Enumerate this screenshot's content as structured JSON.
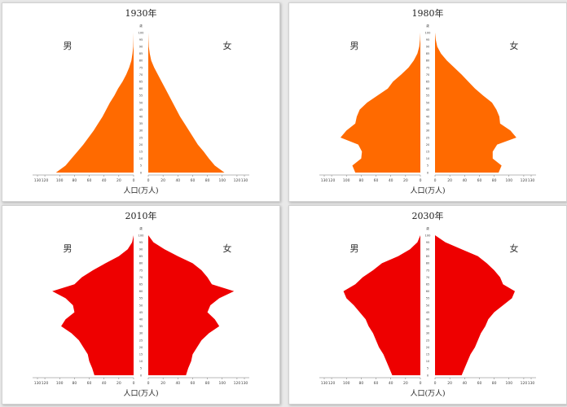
{
  "chart_data": [
    {
      "type": "bar",
      "title": "1930年",
      "left_label": "男",
      "right_label": "女",
      "xlabel": "人口(万人)",
      "xticks": [
        "130",
        "120",
        "100",
        "80",
        "60",
        "40",
        "20",
        "0",
        "0",
        "20",
        "40",
        "60",
        "80",
        "100",
        "120",
        "130"
      ],
      "age_top_label": "歳",
      "age_ticks": [
        "0",
        "5",
        "10",
        "15",
        "20",
        "25",
        "30",
        "35",
        "40",
        "45",
        "50",
        "55",
        "60",
        "65",
        "70",
        "75",
        "80",
        "85",
        "90",
        "95",
        "100"
      ],
      "age_range": [
        0,
        100
      ],
      "xlim": [
        0,
        130
      ],
      "color": "#ff6a00",
      "ages": [
        0,
        5,
        10,
        15,
        20,
        25,
        30,
        35,
        40,
        45,
        50,
        55,
        60,
        65,
        70,
        75,
        80,
        85,
        90,
        95,
        100
      ],
      "male": [
        105,
        92,
        84,
        76,
        68,
        61,
        54,
        48,
        42,
        37,
        32,
        26,
        21,
        15,
        10,
        6,
        3,
        1.5,
        0.5,
        0.2,
        0
      ],
      "female": [
        103,
        90,
        82,
        75,
        67,
        61,
        55,
        49,
        43,
        38,
        33,
        28,
        23,
        18,
        13,
        8,
        4,
        2,
        0.7,
        0.3,
        0
      ]
    },
    {
      "type": "bar",
      "title": "1980年",
      "left_label": "男",
      "right_label": "女",
      "xlabel": "人口(万人)",
      "xticks": [
        "130",
        "120",
        "100",
        "80",
        "60",
        "40",
        "20",
        "0",
        "0",
        "20",
        "40",
        "60",
        "80",
        "100",
        "120",
        "130"
      ],
      "age_top_label": "歳",
      "age_ticks": [
        "0",
        "5",
        "10",
        "15",
        "20",
        "25",
        "30",
        "35",
        "40",
        "45",
        "50",
        "55",
        "60",
        "65",
        "70",
        "75",
        "80",
        "85",
        "90",
        "95",
        "100"
      ],
      "age_range": [
        0,
        100
      ],
      "xlim": [
        0,
        130
      ],
      "color": "#ff6a00",
      "ages": [
        0,
        5,
        10,
        15,
        20,
        25,
        30,
        35,
        40,
        45,
        50,
        55,
        60,
        65,
        70,
        75,
        80,
        85,
        90,
        95,
        100
      ],
      "male": [
        88,
        92,
        80,
        79,
        84,
        108,
        100,
        88,
        86,
        82,
        72,
        58,
        44,
        37,
        26,
        16,
        9,
        4,
        1.5,
        0.5,
        0
      ],
      "female": [
        86,
        90,
        78,
        78,
        84,
        110,
        102,
        88,
        87,
        83,
        77,
        65,
        54,
        45,
        36,
        26,
        16,
        8,
        3,
        1,
        0
      ]
    },
    {
      "type": "bar",
      "title": "2010年",
      "left_label": "男",
      "right_label": "女",
      "xlabel": "人口(万人)",
      "xticks": [
        "130",
        "120",
        "100",
        "80",
        "60",
        "40",
        "20",
        "0",
        "0",
        "20",
        "40",
        "60",
        "80",
        "100",
        "120",
        "130"
      ],
      "age_top_label": "歳",
      "age_ticks": [
        "0",
        "5",
        "10",
        "15",
        "20",
        "25",
        "30",
        "35",
        "40",
        "45",
        "50",
        "55",
        "60",
        "65",
        "70",
        "75",
        "80",
        "85",
        "90",
        "95",
        "100"
      ],
      "age_range": [
        0,
        100
      ],
      "xlim": [
        0,
        130
      ],
      "color": "#ee0000",
      "ages": [
        0,
        5,
        10,
        15,
        20,
        25,
        30,
        35,
        40,
        45,
        50,
        55,
        60,
        65,
        70,
        75,
        80,
        85,
        90,
        95,
        100
      ],
      "male": [
        53,
        56,
        60,
        62,
        68,
        74,
        84,
        98,
        92,
        80,
        82,
        92,
        110,
        80,
        70,
        55,
        38,
        20,
        8,
        2,
        0
      ],
      "female": [
        51,
        54,
        58,
        60,
        66,
        72,
        82,
        96,
        90,
        80,
        84,
        96,
        116,
        86,
        80,
        72,
        60,
        40,
        22,
        7,
        0
      ]
    },
    {
      "type": "bar",
      "title": "2030年",
      "left_label": "男",
      "right_label": "女",
      "xlabel": "人口(万人)",
      "xticks": [
        "130",
        "120",
        "100",
        "80",
        "60",
        "40",
        "20",
        "0",
        "0",
        "20",
        "40",
        "60",
        "80",
        "100",
        "120",
        "130"
      ],
      "age_top_label": "歳",
      "age_ticks": [
        "0",
        "5",
        "10",
        "15",
        "20",
        "25",
        "30",
        "35",
        "40",
        "45",
        "50",
        "55",
        "60",
        "65",
        "70",
        "75",
        "80",
        "85",
        "90",
        "95",
        "100"
      ],
      "age_range": [
        0,
        100
      ],
      "xlim": [
        0,
        130
      ],
      "color": "#ee0000",
      "ages": [
        0,
        5,
        10,
        15,
        20,
        25,
        30,
        35,
        40,
        45,
        50,
        55,
        60,
        65,
        70,
        75,
        80,
        85,
        90,
        95,
        100
      ],
      "male": [
        38,
        42,
        46,
        50,
        56,
        60,
        64,
        70,
        74,
        82,
        90,
        100,
        104,
        88,
        78,
        64,
        52,
        30,
        14,
        4,
        0
      ],
      "female": [
        36,
        40,
        44,
        48,
        54,
        58,
        62,
        68,
        72,
        80,
        92,
        104,
        108,
        92,
        88,
        80,
        70,
        58,
        36,
        14,
        0
      ]
    }
  ]
}
